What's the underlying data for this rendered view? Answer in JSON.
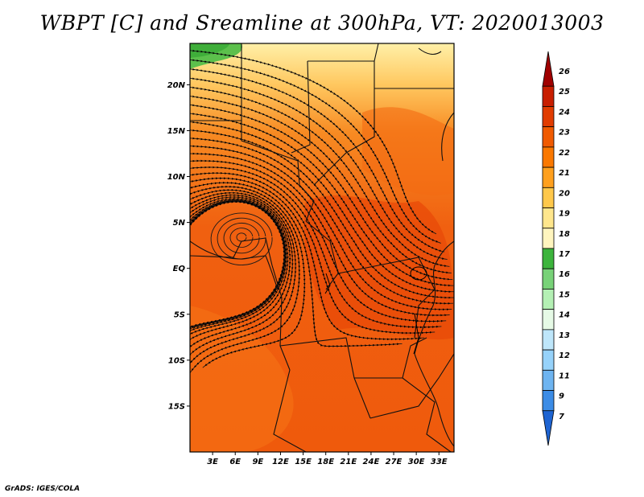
{
  "title": "WBPT [C] and Sreamline at 300hPa, VT: 2020013003",
  "footer": "GrADS: IGES/COLA",
  "map": {
    "projection": "latlon",
    "lon_range": [
      0,
      35
    ],
    "lat_range": [
      -20,
      24.5
    ],
    "x_ticks": [
      "3E",
      "6E",
      "9E",
      "12E",
      "15E",
      "18E",
      "21E",
      "24E",
      "27E",
      "30E",
      "33E"
    ],
    "y_ticks": [
      "20N",
      "15N",
      "10N",
      "5N",
      "EQ",
      "5S",
      "10S",
      "15S"
    ]
  },
  "colorbar": {
    "labels": [
      "26",
      "25",
      "24",
      "23",
      "22",
      "21",
      "20",
      "19",
      "18",
      "17",
      "16",
      "15",
      "14",
      "13",
      "12",
      "11",
      "9",
      "7"
    ],
    "colors": [
      "#a00000",
      "#c81e00",
      "#e13c00",
      "#f05a00",
      "#fa7800",
      "#ffa01e",
      "#ffc84b",
      "#ffe68c",
      "#fff5be",
      "#3cb43c",
      "#78d278",
      "#b4f0b4",
      "#e6fae6",
      "#bee6fa",
      "#96d2fa",
      "#6eb4f0",
      "#3c8ce6",
      "#1e64d2"
    ]
  }
}
